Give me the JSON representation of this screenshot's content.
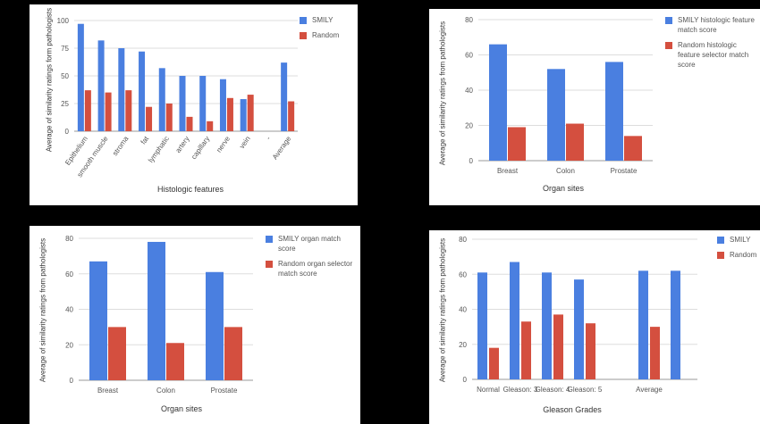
{
  "colors": {
    "smily": "#4a7fe0",
    "random": "#d44f3f",
    "grid": "#dddddd",
    "text": "#555555"
  },
  "chart_data": [
    {
      "type": "bar",
      "categories": [
        "Epithelium",
        "smooth muscle",
        "stroma",
        "fat",
        "lymphatic",
        "artery",
        "capillary",
        "nerve",
        "vein",
        "-",
        "Average"
      ],
      "series": [
        {
          "name": "SMILY",
          "values": [
            97,
            82,
            75,
            72,
            57,
            50,
            50,
            47,
            29,
            null,
            62
          ]
        },
        {
          "name": "Random",
          "values": [
            37,
            35,
            37,
            22,
            25,
            13,
            9,
            30,
            33,
            null,
            27
          ]
        }
      ],
      "xlabel": "Histologic features",
      "ylabel": "Average of similarity ratings form pathologists",
      "ylim": [
        0,
        100
      ],
      "yticks": [
        "0",
        "25",
        "50",
        "75",
        "100"
      ],
      "legend_position": "top-right",
      "rotated_x_labels": true
    },
    {
      "type": "bar",
      "categories": [
        "Breast",
        "Colon",
        "Prostate"
      ],
      "series": [
        {
          "name": "SMILY histologic feature match score",
          "values": [
            66,
            52,
            56
          ]
        },
        {
          "name": "Random histologic feature selector match score",
          "values": [
            19,
            21,
            14
          ]
        }
      ],
      "xlabel": "Organ sites",
      "ylabel": "Average of similarity ratings from pathologists",
      "ylim": [
        0,
        80
      ],
      "yticks": [
        "0",
        "20",
        "40",
        "60",
        "80"
      ],
      "legend_position": "top-right"
    },
    {
      "type": "bar",
      "categories": [
        "Breast",
        "Colon",
        "Prostate"
      ],
      "series": [
        {
          "name": "SMILY organ match score",
          "values": [
            67,
            78,
            61
          ]
        },
        {
          "name": "Random organ selector match score",
          "values": [
            30,
            21,
            30
          ]
        }
      ],
      "xlabel": "Organ sites",
      "ylabel": "Average of similarity ratings from pathologists",
      "ylim": [
        0,
        80
      ],
      "yticks": [
        "0",
        "20",
        "40",
        "60",
        "80"
      ],
      "legend_position": "top-right"
    },
    {
      "type": "bar",
      "categories": [
        "Normal",
        "Gleason: 3",
        "Gleason: 4",
        "Gleason: 5",
        "",
        "Average",
        ""
      ],
      "series": [
        {
          "name": "SMILY",
          "values": [
            61,
            67,
            61,
            57,
            null,
            62,
            62
          ]
        },
        {
          "name": "Random",
          "values": [
            18,
            33,
            37,
            32,
            null,
            30,
            null
          ]
        }
      ],
      "xlabel": "Gleason Grades",
      "ylabel": "Average of similarity ratings from pathologists",
      "ylim": [
        0,
        80
      ],
      "yticks": [
        "0",
        "20",
        "40",
        "60",
        "80"
      ],
      "legend_position": "top-right"
    }
  ]
}
